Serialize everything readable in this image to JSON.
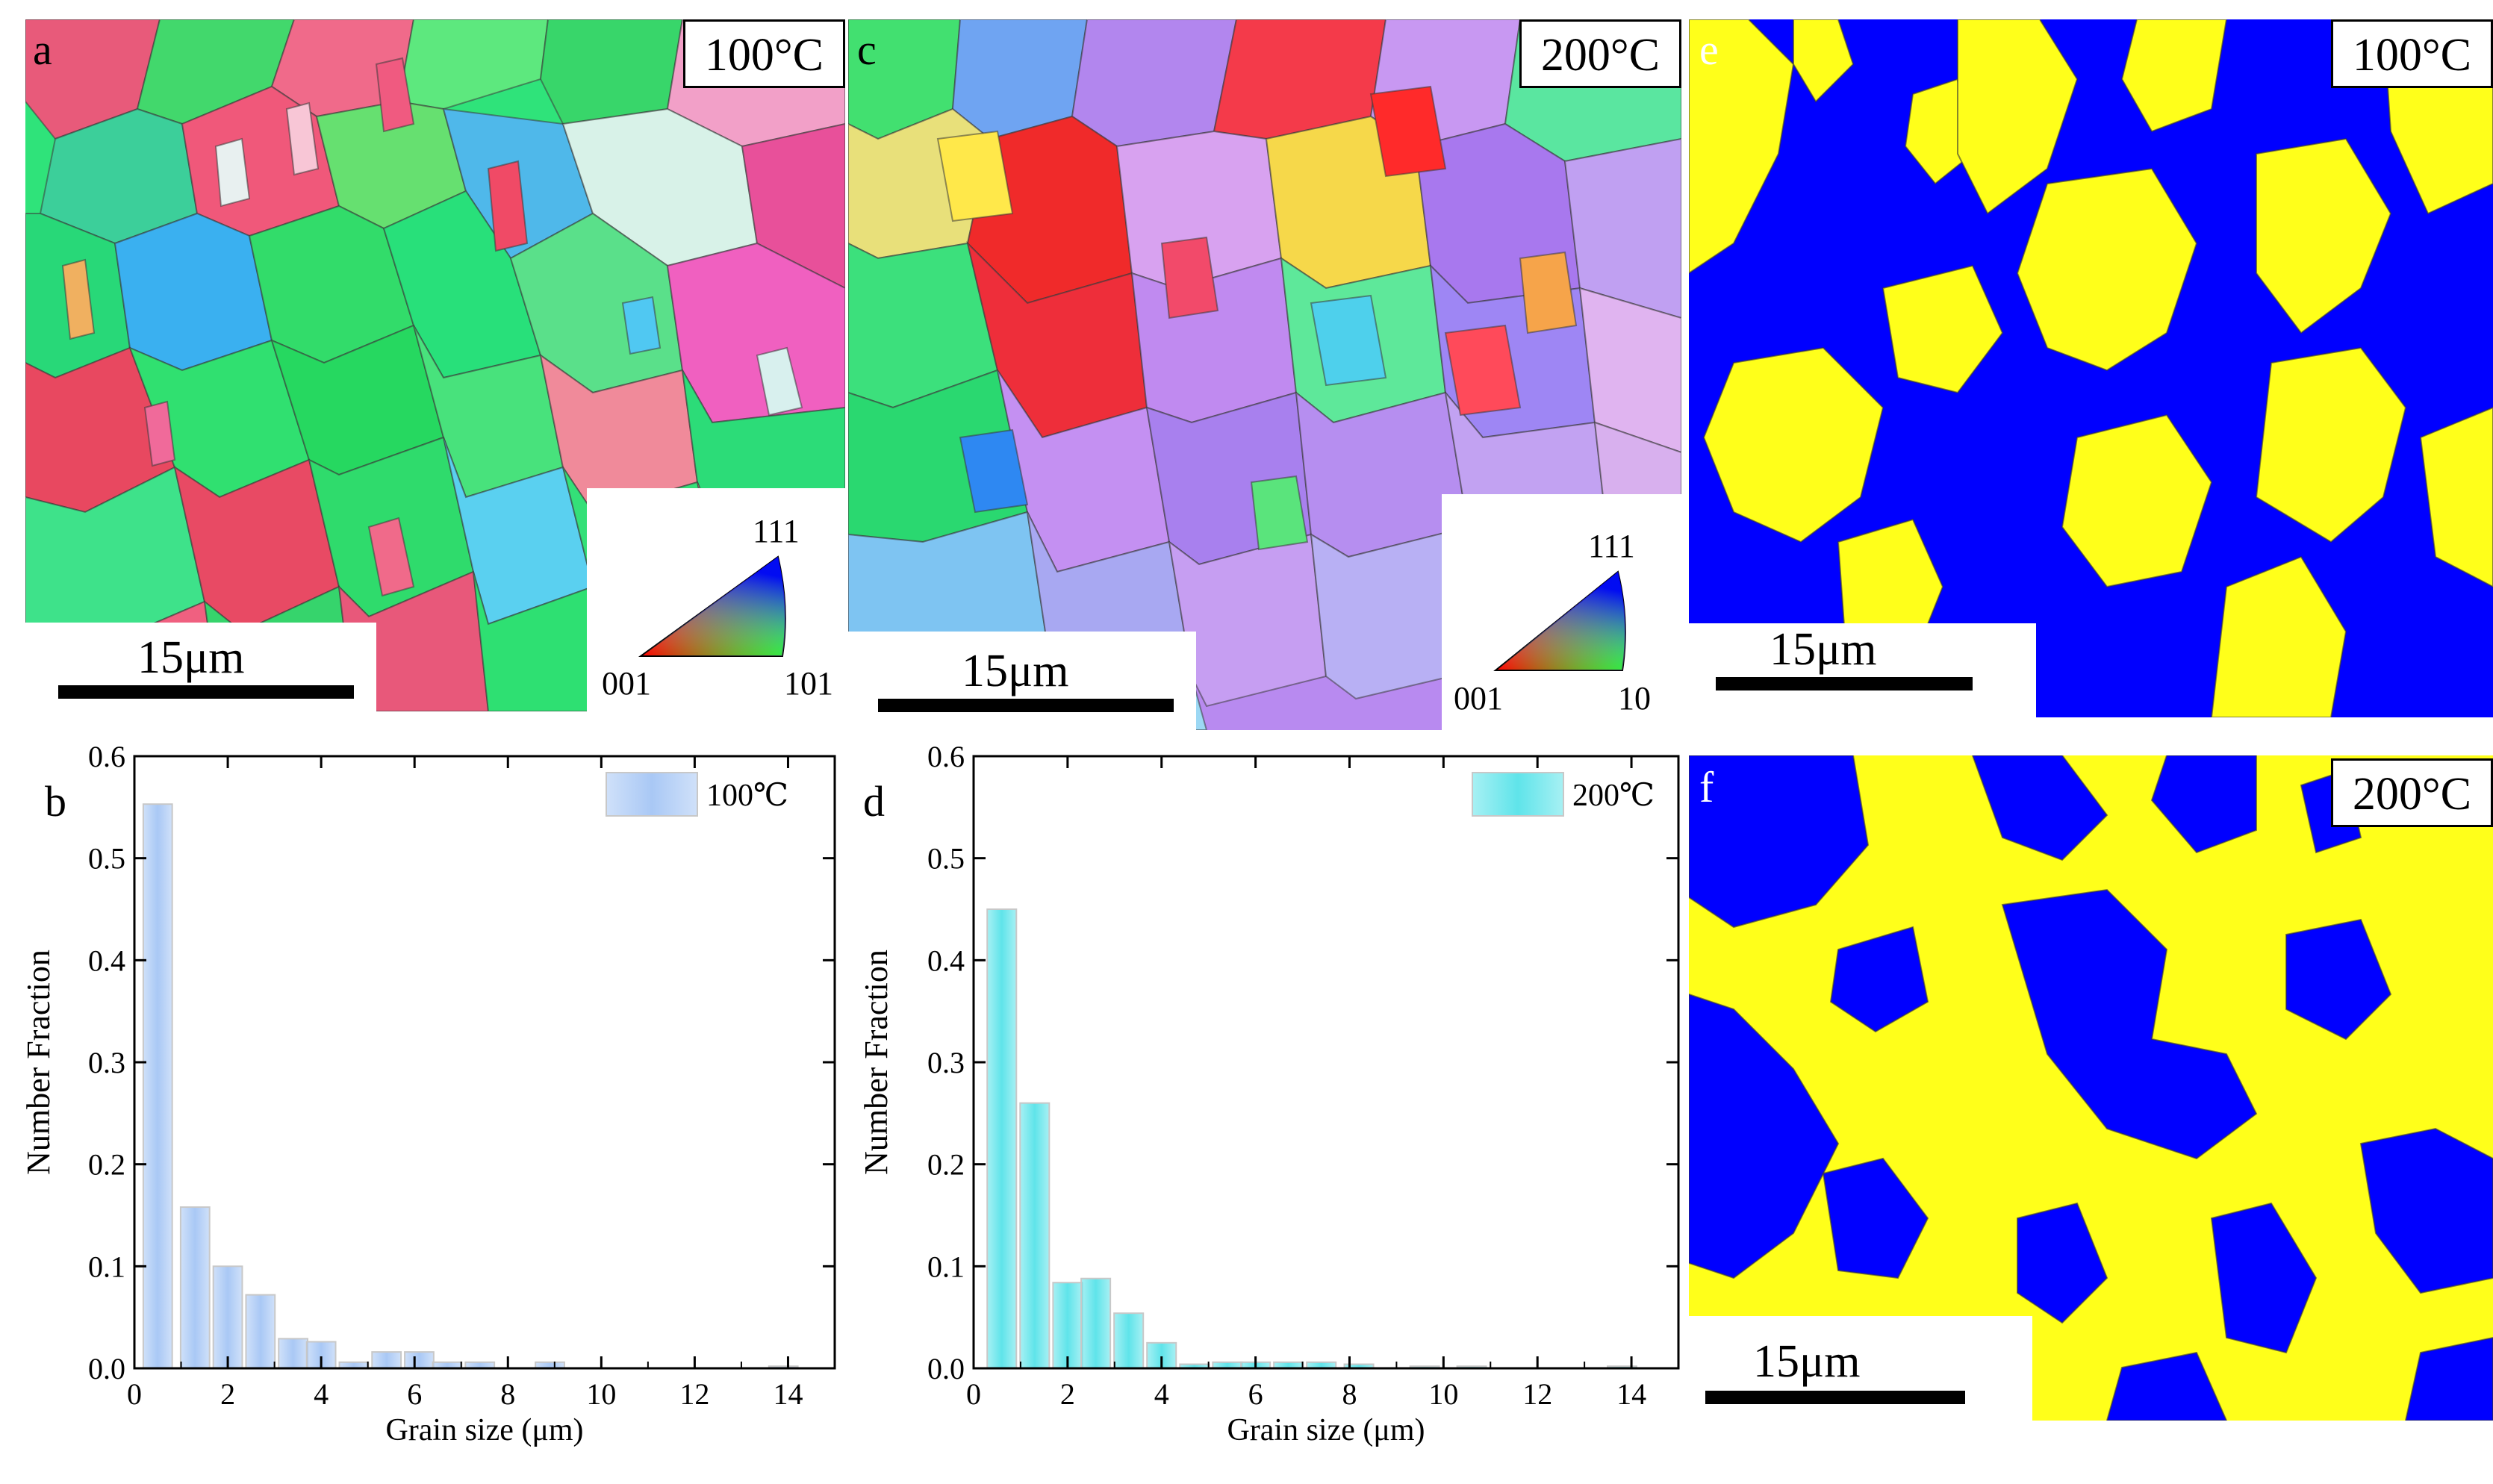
{
  "panels": {
    "a": {
      "letter": "a",
      "temperature": "100°C",
      "scale": "15μm",
      "key": {
        "top": "111",
        "left": "001",
        "right": "101"
      }
    },
    "c": {
      "letter": "c",
      "temperature": "200°C",
      "scale": "15μm",
      "key": {
        "top": "111",
        "left": "001",
        "right": "10"
      }
    },
    "e": {
      "letter": "e",
      "temperature": "100°C",
      "scale": "15μm"
    },
    "f": {
      "letter": "f",
      "temperature": "200°C",
      "scale": "15μm"
    }
  },
  "colors": {
    "phase_yellow": "#ffff1a",
    "phase_blue": "#0000ff",
    "bar_b": "#a9c8f5",
    "bar_d": "#5fe4ea"
  },
  "chart_data": [
    {
      "type": "bar",
      "panel_letter": "b",
      "legend": "100℃",
      "xlabel": "Grain size (μm)",
      "ylabel": "Number Fraction",
      "xlim": [
        0,
        15
      ],
      "ylim": [
        0,
        0.6
      ],
      "xticks": [
        "0",
        "2",
        "4",
        "6",
        "8",
        "10",
        "12",
        "14"
      ],
      "yticks": [
        "0.0",
        "0.1",
        "0.2",
        "0.3",
        "0.4",
        "0.5",
        "0.6"
      ],
      "x": [
        0.5,
        1.3,
        2.0,
        2.7,
        3.4,
        4.0,
        4.7,
        5.4,
        6.1,
        6.7,
        7.4,
        8.9,
        13.9
      ],
      "values": [
        0.553,
        0.158,
        0.1,
        0.072,
        0.029,
        0.026,
        0.006,
        0.016,
        0.016,
        0.006,
        0.006,
        0.006,
        0.002
      ],
      "legend_placement": "top-right",
      "grid": false
    },
    {
      "type": "bar",
      "panel_letter": "d",
      "legend": "200℃",
      "xlabel": "Grain size (μm)",
      "ylabel": "Number Fraction",
      "xlim": [
        0,
        15
      ],
      "ylim": [
        0,
        0.6
      ],
      "xticks": [
        "0",
        "2",
        "4",
        "6",
        "8",
        "10",
        "12",
        "14"
      ],
      "yticks": [
        "0.0",
        "0.1",
        "0.2",
        "0.3",
        "0.4",
        "0.5",
        "0.6"
      ],
      "x": [
        0.6,
        1.3,
        2.0,
        2.6,
        3.3,
        4.0,
        4.7,
        5.4,
        6.0,
        6.7,
        7.4,
        8.2,
        9.6,
        10.6,
        13.8
      ],
      "values": [
        0.45,
        0.26,
        0.084,
        0.088,
        0.054,
        0.025,
        0.004,
        0.006,
        0.006,
        0.006,
        0.006,
        0.004,
        0.002,
        0.002,
        0.002
      ],
      "legend_placement": "top-right",
      "grid": false
    }
  ]
}
